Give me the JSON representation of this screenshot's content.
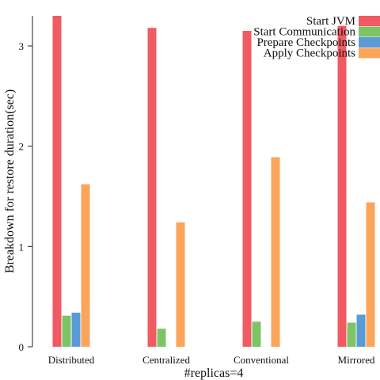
{
  "chart_data": {
    "type": "bar",
    "title": "",
    "xlabel": "#replicas=4",
    "ylabel": "Breakdown for restore duration(sec)",
    "categories": [
      "Distributed",
      "Centralized",
      "Conventional",
      "Mirrored"
    ],
    "series": [
      {
        "name": "Start JVM",
        "color": "#f05a63",
        "values": [
          3.3,
          3.18,
          3.15,
          3.2
        ]
      },
      {
        "name": "Start Communication",
        "color": "#7dc465",
        "values": [
          0.31,
          0.18,
          0.25,
          0.24
        ]
      },
      {
        "name": "Prepare Checkpoints",
        "color": "#5b9bd5",
        "values": [
          0.34,
          0,
          0,
          0.32
        ]
      },
      {
        "name": "Apply Checkpoints",
        "color": "#fba55a",
        "values": [
          1.62,
          1.24,
          1.89,
          1.44
        ]
      }
    ],
    "ylim": [
      0,
      3.3
    ],
    "yticks": [
      0,
      1,
      2,
      3
    ],
    "grid": false,
    "legend_position": "top-right"
  }
}
